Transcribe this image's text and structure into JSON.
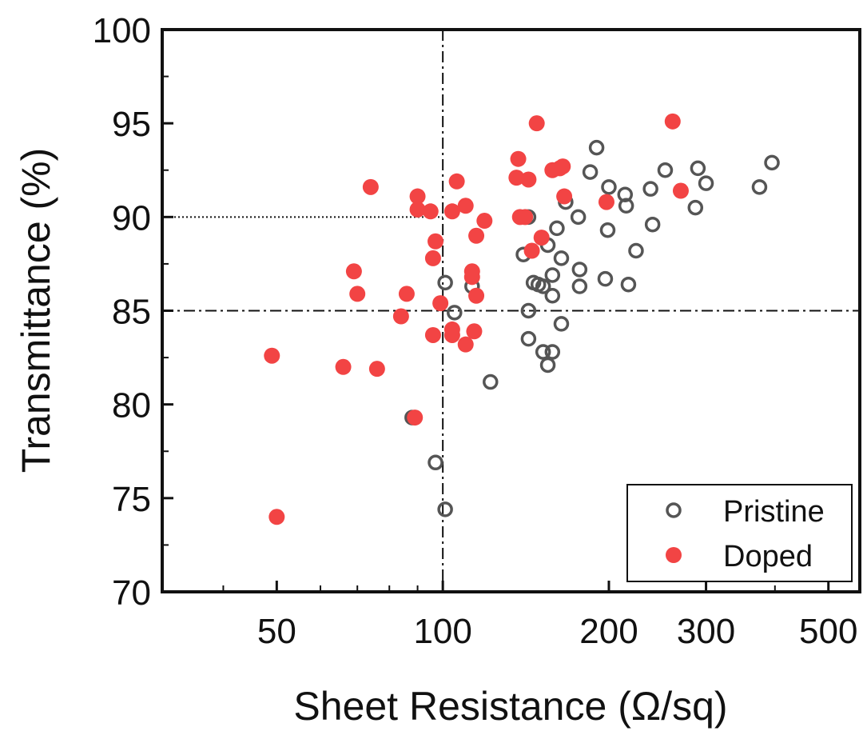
{
  "chart_data": {
    "type": "scatter",
    "title": "",
    "xlabel": "Sheet Resistance (Ω/sq)",
    "ylabel": "Transmittance (%)",
    "x_scale": "log",
    "xlim": [
      31,
      570
    ],
    "ylim": [
      70,
      100
    ],
    "x_ticks": [
      50,
      100,
      200,
      300,
      500
    ],
    "x_tick_labels": [
      "50",
      "100",
      "200",
      "300",
      "500"
    ],
    "y_ticks": [
      70,
      75,
      80,
      85,
      90,
      95,
      100
    ],
    "y_tick_labels": [
      "70",
      "75",
      "80",
      "85",
      "90",
      "95",
      "100"
    ],
    "grid": false,
    "legend_position": "bottom-right",
    "reference_lines": [
      {
        "orientation": "vertical",
        "value": 100,
        "style": "dash-dot"
      },
      {
        "orientation": "horizontal",
        "value": 85,
        "style": "dash-dot"
      },
      {
        "orientation": "horizontal",
        "value": 90,
        "x_end": 100,
        "style": "dotted"
      }
    ],
    "series": [
      {
        "name": "Pristine",
        "marker": "open-circle",
        "color": "#555555",
        "points": [
          [
            101,
            86.5
          ],
          [
            105,
            84.9
          ],
          [
            113,
            86.3
          ],
          [
            122,
            81.2
          ],
          [
            88,
            79.3
          ],
          [
            97,
            76.9
          ],
          [
            101,
            74.4
          ],
          [
            140,
            88.0
          ],
          [
            143,
            90.0
          ],
          [
            143,
            85.0
          ],
          [
            143,
            83.5
          ],
          [
            146,
            86.5
          ],
          [
            149,
            86.4
          ],
          [
            152,
            86.3
          ],
          [
            152,
            82.8
          ],
          [
            155,
            88.5
          ],
          [
            155,
            82.1
          ],
          [
            158,
            86.9
          ],
          [
            158,
            85.8
          ],
          [
            158,
            82.8
          ],
          [
            161,
            89.4
          ],
          [
            164,
            87.8
          ],
          [
            164,
            84.3
          ],
          [
            167,
            90.8
          ],
          [
            176,
            90.0
          ],
          [
            177,
            87.2
          ],
          [
            177,
            86.3
          ],
          [
            185,
            92.4
          ],
          [
            190,
            93.7
          ],
          [
            197,
            86.7
          ],
          [
            199,
            89.3
          ],
          [
            200,
            91.6
          ],
          [
            214,
            91.2
          ],
          [
            215,
            90.6
          ],
          [
            217,
            86.4
          ],
          [
            224,
            88.2
          ],
          [
            238,
            91.5
          ],
          [
            240,
            89.6
          ],
          [
            253,
            92.5
          ],
          [
            287,
            90.5
          ],
          [
            290,
            92.6
          ],
          [
            300,
            91.8
          ],
          [
            375,
            91.6
          ],
          [
            395,
            92.9
          ]
        ]
      },
      {
        "name": "Doped",
        "marker": "filled-circle",
        "color": "#f24444",
        "points": [
          [
            49,
            82.6
          ],
          [
            50,
            74.0
          ],
          [
            66,
            82.0
          ],
          [
            69,
            87.1
          ],
          [
            70,
            85.9
          ],
          [
            74,
            91.6
          ],
          [
            76,
            81.9
          ],
          [
            84,
            84.7
          ],
          [
            86,
            85.9
          ],
          [
            89,
            79.3
          ],
          [
            90,
            91.1
          ],
          [
            90,
            90.4
          ],
          [
            95,
            90.3
          ],
          [
            96,
            87.8
          ],
          [
            96,
            83.7
          ],
          [
            97,
            88.7
          ],
          [
            99,
            85.4
          ],
          [
            104,
            84.0
          ],
          [
            104,
            83.7
          ],
          [
            104,
            90.3
          ],
          [
            106,
            91.9
          ],
          [
            110,
            90.6
          ],
          [
            110,
            83.2
          ],
          [
            113,
            87.1
          ],
          [
            113,
            86.8
          ],
          [
            114,
            83.9
          ],
          [
            115,
            89.0
          ],
          [
            115,
            85.8
          ],
          [
            119,
            89.8
          ],
          [
            136,
            92.1
          ],
          [
            137,
            93.1
          ],
          [
            138,
            90.0
          ],
          [
            141,
            90.0
          ],
          [
            143,
            92.0
          ],
          [
            145,
            88.2
          ],
          [
            148,
            95.0
          ],
          [
            151,
            88.9
          ],
          [
            158,
            92.5
          ],
          [
            163,
            92.6
          ],
          [
            165,
            92.7
          ],
          [
            166,
            91.1
          ],
          [
            198,
            90.8
          ],
          [
            261,
            95.1
          ],
          [
            270,
            91.4
          ]
        ]
      }
    ]
  }
}
